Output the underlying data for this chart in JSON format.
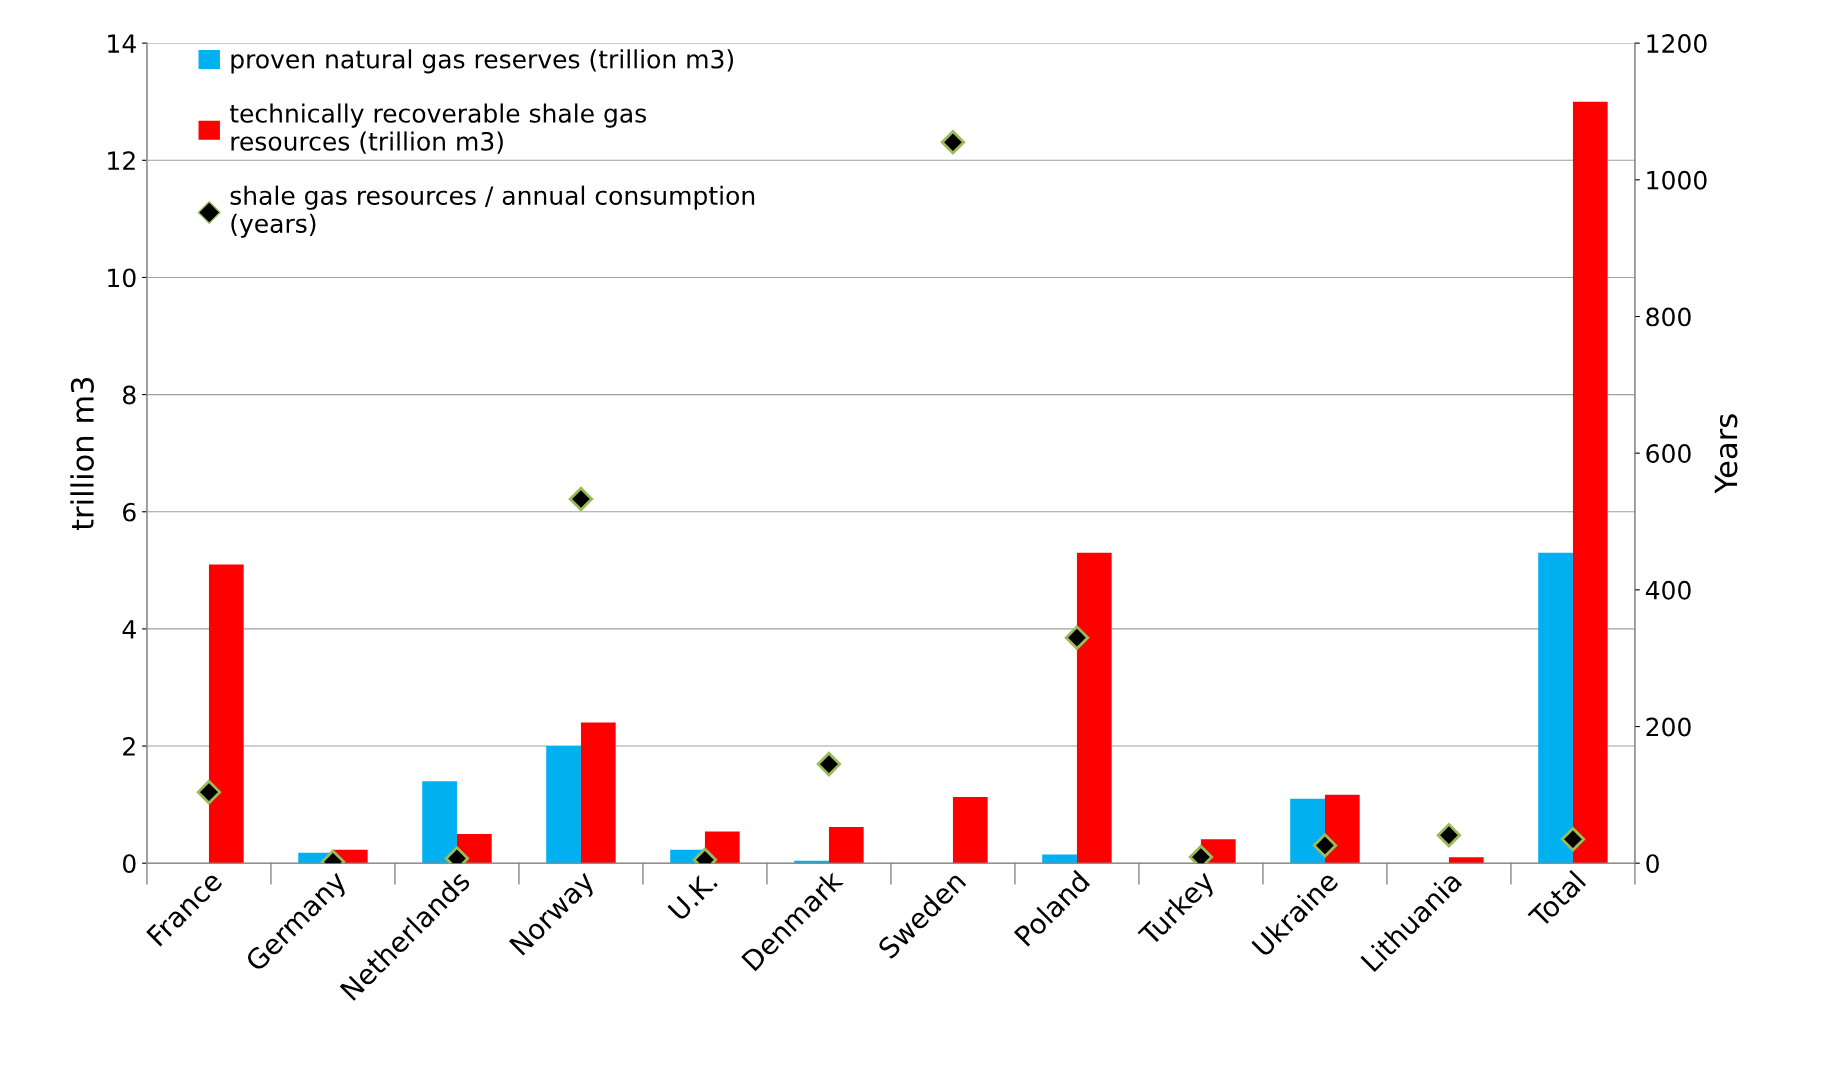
{
  "chart_data": {
    "type": "bar",
    "categories": [
      "France",
      "Germany",
      "Netherlands",
      "Norway",
      "U.K.",
      "Denmark",
      "Sweden",
      "Poland",
      "Turkey",
      "Ukraine",
      "Lithuania",
      "Total"
    ],
    "series": [
      {
        "name": "proven natural gas reserves (trillion m3)",
        "color": "#00b0f0",
        "values": [
          null,
          0.18,
          1.4,
          2.0,
          0.23,
          0.04,
          null,
          0.15,
          null,
          1.1,
          null,
          5.3
        ]
      },
      {
        "name": "technically recoverable shale gas\nresources (trillion m3)",
        "color": "#ff0000",
        "values": [
          5.1,
          0.23,
          0.5,
          2.4,
          0.54,
          0.62,
          1.13,
          5.3,
          0.41,
          1.17,
          0.1,
          13.0
        ]
      },
      {
        "name": "shale gas resources / annual consumption\n(years)",
        "color": "#000000",
        "type": "scatter",
        "axis": "y2",
        "marker": "diamond",
        "values": [
          104,
          2,
          7,
          533,
          5,
          145,
          1055,
          330,
          9,
          26,
          41,
          35
        ]
      }
    ],
    "ylabel": "trillion m3",
    "y2label": "Years",
    "ylim": [
      0,
      14
    ],
    "yticks": [
      0,
      2,
      4,
      6,
      8,
      10,
      12,
      14
    ],
    "y2lim": [
      0,
      1200
    ],
    "y2ticks": [
      0,
      200,
      400,
      600,
      800,
      1000,
      1200
    ],
    "grid": "y",
    "legend": "top left"
  }
}
